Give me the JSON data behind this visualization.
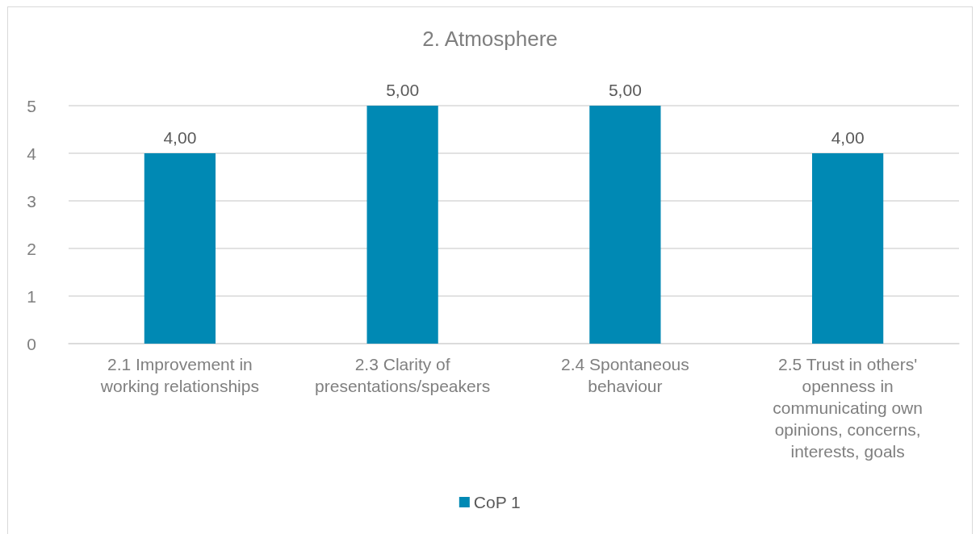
{
  "chart_data": {
    "type": "bar",
    "title": "2. Atmosphere",
    "categories": [
      "2.1 Improvement in working relationships",
      "2.3 Clarity of presentations/speakers",
      "2.4 Spontaneous behaviour",
      "2.5 Trust in others' openness in communicating own opinions, concerns, interests, goals"
    ],
    "series": [
      {
        "name": "CoP 1",
        "color": "#0089b4",
        "values": [
          4,
          5,
          5,
          4
        ],
        "value_labels": [
          "4,00",
          "5,00",
          "5,00",
          "4,00"
        ]
      }
    ],
    "ylim": [
      0,
      5
    ],
    "yticks": [
      0,
      1,
      2,
      3,
      4,
      5
    ],
    "grid": "y",
    "legend": "bottom"
  }
}
